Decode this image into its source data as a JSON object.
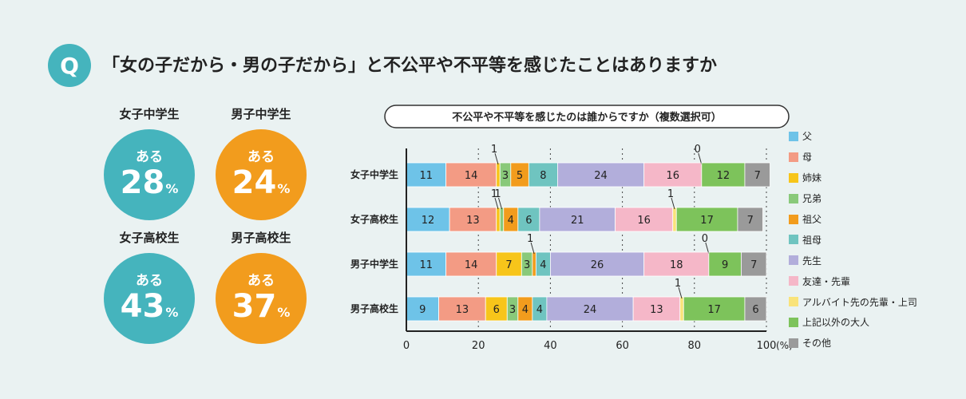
{
  "header": {
    "q_label": "Q",
    "title": "「女の子だから・男の子だから」と不公平や不平等を感じたことはありますか"
  },
  "summary": {
    "aru_label": "ある",
    "unit": "%",
    "groups": [
      {
        "label": "女子中学生",
        "value": "28",
        "color": "#45b4bd"
      },
      {
        "label": "男子中学生",
        "value": "24",
        "color": "#f29c1d"
      },
      {
        "label": "女子高校生",
        "value": "43",
        "color": "#45b4bd"
      },
      {
        "label": "男子高校生",
        "value": "37",
        "color": "#f29c1d"
      }
    ]
  },
  "chart_data": {
    "type": "bar",
    "orientation": "horizontal",
    "stacked": true,
    "title": "不公平や不平等を感じたのは誰からですか（複数選択可）",
    "x_unit_label": "(%)",
    "xlim": [
      0,
      100
    ],
    "x_ticks": [
      0,
      20,
      40,
      60,
      80,
      100
    ],
    "grid": "dotted vertical",
    "legend_position": "right",
    "categories": [
      "女子中学生",
      "女子高校生",
      "男子中学生",
      "男子高校生"
    ],
    "series": [
      {
        "name": "父",
        "color": "#6ec3e8",
        "values": [
          11,
          12,
          11,
          9
        ]
      },
      {
        "name": "母",
        "color": "#f39b84",
        "values": [
          14,
          13,
          14,
          13
        ]
      },
      {
        "name": "姉妹",
        "color": "#f7c51a",
        "values": [
          1,
          1,
          7,
          6
        ]
      },
      {
        "name": "兄弟",
        "color": "#89c97a",
        "values": [
          3,
          1,
          3,
          3
        ]
      },
      {
        "name": "祖父",
        "color": "#f29c1d",
        "values": [
          5,
          4,
          1,
          4
        ]
      },
      {
        "name": "祖母",
        "color": "#6fc4c0",
        "values": [
          8,
          6,
          4,
          4
        ]
      },
      {
        "name": "先生",
        "color": "#b2aedb",
        "values": [
          24,
          21,
          26,
          24
        ]
      },
      {
        "name": "友達・先輩",
        "color": "#f5b7c8",
        "values": [
          16,
          16,
          18,
          13
        ]
      },
      {
        "name": "アルバイト先の先輩・上司",
        "color": "#f9e37a",
        "values": [
          0,
          1,
          0,
          1
        ]
      },
      {
        "name": "上記以外の大人",
        "color": "#7dc35b",
        "values": [
          12,
          17,
          9,
          17
        ]
      },
      {
        "name": "その他",
        "color": "#9a9a9a",
        "values": [
          7,
          7,
          7,
          6
        ]
      }
    ]
  }
}
